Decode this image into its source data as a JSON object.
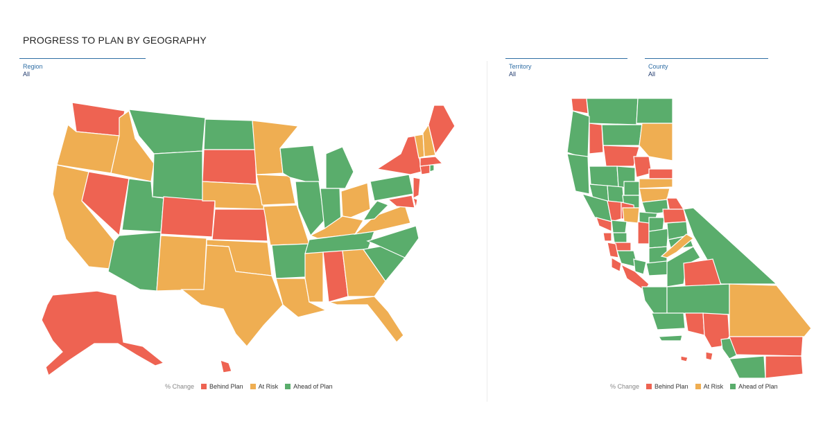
{
  "title": "PROGRESS TO PLAN BY GEOGRAPHY",
  "colors": {
    "behind": "#ee6352",
    "risk": "#efae52",
    "ahead": "#5aad6c"
  },
  "filters": {
    "region": {
      "label": "Region",
      "value": "All"
    },
    "territory": {
      "label": "Territory",
      "value": "All"
    },
    "county": {
      "label": "County",
      "value": "All"
    }
  },
  "legend": {
    "title": "% Change",
    "behind": "Behind Plan",
    "risk": "At Risk",
    "ahead": "Ahead of Plan"
  }
}
